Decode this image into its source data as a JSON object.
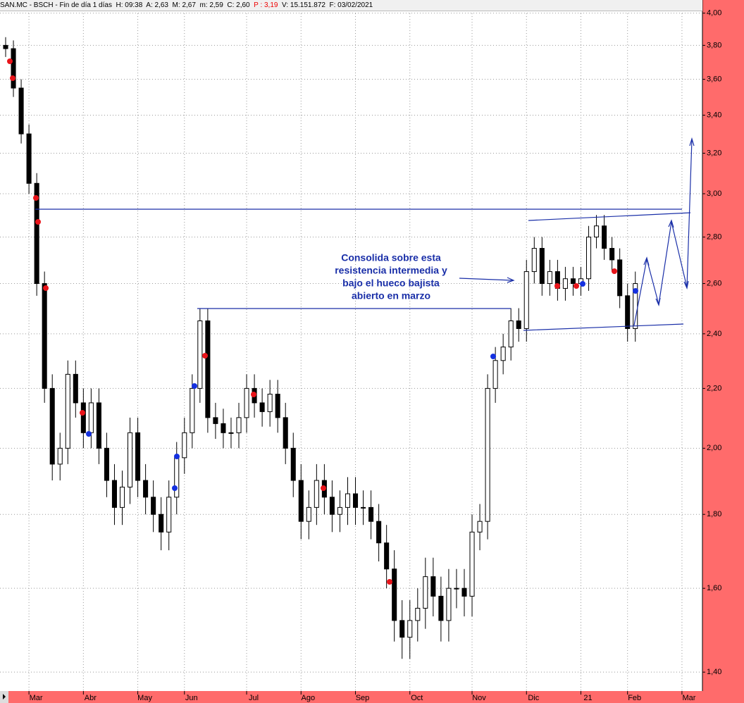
{
  "chart_data": {
    "type": "candlestick",
    "header": {
      "info": "SAN.MC - BSCH - Fin de día 1 días  H: 09:38  A: 2,63  M: 2,67  m: 2,59  C: 2,60",
      "price": "P : 3,19",
      "extra": "V: 15.151.872  F: 03/02/2021"
    },
    "annotation": [
      "Consolida sobre esta",
      "resistencia intermedia y",
      "bajo el hueco bajista",
      "abierto en marzo"
    ],
    "categories": [
      null,
      null,
      null,
      "Mar",
      null,
      null,
      null,
      null,
      null,
      null,
      "Abr",
      null,
      null,
      null,
      null,
      null,
      null,
      "May",
      null,
      null,
      null,
      null,
      null,
      "Jun",
      null,
      null,
      null,
      null,
      null,
      null,
      null,
      "Jul",
      null,
      null,
      null,
      null,
      null,
      null,
      "Ago",
      null,
      null,
      null,
      null,
      null,
      null,
      "Sep",
      null,
      null,
      null,
      null,
      null,
      null,
      "Oct",
      null,
      null,
      null,
      null,
      null,
      null,
      null,
      "Nov",
      null,
      null,
      null,
      null,
      null,
      null,
      "Dic",
      null,
      null,
      null,
      null,
      null,
      null,
      "21",
      null,
      null,
      null,
      null,
      null,
      "Feb",
      null,
      null,
      null,
      null,
      null,
      null,
      "Mar",
      null,
      null
    ],
    "open": [
      3.8,
      3.78,
      3.55,
      3.3,
      3.05,
      2.6,
      2.2,
      1.95,
      2.0,
      2.25,
      2.15,
      2.05,
      2.15,
      2.0,
      1.9,
      1.82,
      1.88,
      2.05,
      1.9,
      1.85,
      1.8,
      1.75,
      1.85,
      1.97,
      2.05,
      2.2,
      2.45,
      2.1,
      2.08,
      2.05,
      2.05,
      2.1,
      2.2,
      2.15,
      2.12,
      2.18,
      2.1,
      2.0,
      1.9,
      1.78,
      1.82,
      1.9,
      1.85,
      1.8,
      1.82,
      1.86,
      1.82,
      1.82,
      1.78,
      1.72,
      1.65,
      1.52,
      1.48,
      1.52,
      1.55,
      1.63,
      1.58,
      1.52,
      1.6,
      1.6,
      1.58,
      1.75,
      1.78,
      2.2,
      2.3,
      2.35,
      2.45,
      2.42,
      2.65,
      2.75,
      2.6,
      2.65,
      2.58,
      2.62,
      2.6,
      2.62,
      2.8,
      2.85,
      2.75,
      2.7,
      2.55,
      2.42,
      null,
      null,
      null,
      null,
      null,
      null,
      null,
      null
    ],
    "high": [
      3.85,
      3.83,
      3.6,
      3.35,
      3.1,
      2.65,
      2.25,
      2.05,
      2.3,
      2.3,
      2.2,
      2.2,
      2.2,
      2.05,
      1.95,
      1.93,
      2.1,
      2.1,
      1.95,
      1.9,
      1.85,
      1.9,
      2.02,
      2.1,
      2.25,
      2.5,
      2.5,
      2.15,
      2.13,
      2.1,
      2.15,
      2.25,
      2.25,
      2.2,
      2.23,
      2.23,
      2.15,
      2.05,
      1.95,
      1.87,
      1.95,
      1.95,
      1.9,
      1.87,
      1.91,
      1.91,
      1.87,
      1.87,
      1.83,
      1.77,
      1.7,
      1.57,
      1.57,
      1.6,
      1.68,
      1.68,
      1.63,
      1.65,
      1.65,
      1.65,
      1.8,
      1.83,
      2.25,
      2.35,
      2.4,
      2.5,
      2.5,
      2.7,
      2.8,
      2.8,
      2.7,
      2.7,
      2.67,
      2.67,
      2.67,
      2.85,
      2.9,
      2.9,
      2.8,
      2.75,
      2.6,
      2.65,
      null,
      null,
      null,
      null,
      null,
      null,
      null,
      null
    ],
    "low": [
      3.73,
      3.5,
      3.25,
      3.0,
      2.55,
      2.15,
      1.9,
      1.9,
      1.95,
      2.1,
      2.0,
      2.0,
      1.95,
      1.85,
      1.77,
      1.77,
      1.83,
      1.85,
      1.8,
      1.75,
      1.7,
      1.7,
      1.8,
      1.92,
      2.0,
      2.15,
      2.05,
      2.03,
      2.0,
      2.0,
      2.0,
      2.05,
      2.1,
      2.07,
      2.07,
      2.05,
      1.95,
      1.85,
      1.73,
      1.73,
      1.77,
      1.8,
      1.75,
      1.75,
      1.77,
      1.77,
      1.77,
      1.73,
      1.67,
      1.6,
      1.47,
      1.43,
      1.43,
      1.47,
      1.5,
      1.53,
      1.47,
      1.47,
      1.55,
      1.53,
      1.53,
      1.7,
      1.73,
      2.15,
      2.25,
      2.3,
      2.37,
      2.37,
      2.6,
      2.55,
      2.55,
      2.53,
      2.53,
      2.55,
      2.55,
      2.57,
      2.75,
      2.7,
      2.65,
      2.5,
      2.37,
      2.37,
      null,
      null,
      null,
      null,
      null,
      null,
      null,
      null
    ],
    "close": [
      3.78,
      3.55,
      3.3,
      3.05,
      2.6,
      2.2,
      1.95,
      2.0,
      2.25,
      2.15,
      2.05,
      2.15,
      2.0,
      1.9,
      1.82,
      1.88,
      2.05,
      1.9,
      1.85,
      1.8,
      1.75,
      1.85,
      1.97,
      2.05,
      2.2,
      2.45,
      2.1,
      2.08,
      2.05,
      2.05,
      2.1,
      2.2,
      2.15,
      2.12,
      2.18,
      2.1,
      2.0,
      1.9,
      1.78,
      1.82,
      1.9,
      1.85,
      1.8,
      1.82,
      1.86,
      1.82,
      1.82,
      1.78,
      1.72,
      1.65,
      1.52,
      1.48,
      1.52,
      1.55,
      1.63,
      1.58,
      1.52,
      1.6,
      1.6,
      1.58,
      1.75,
      1.78,
      2.2,
      2.3,
      2.35,
      2.45,
      2.42,
      2.65,
      2.75,
      2.6,
      2.65,
      2.58,
      2.62,
      2.6,
      2.62,
      2.8,
      2.85,
      2.75,
      2.7,
      2.55,
      2.42,
      2.6,
      null,
      null,
      null,
      null,
      null,
      null,
      null,
      null
    ],
    "up_color": "#ffffff",
    "down_color": "#000000",
    "ylim": [
      1.36,
      4.03
    ],
    "log_scale": true,
    "grid": true,
    "yticks": [
      {
        "value": 1.4,
        "label": "1,40"
      },
      {
        "value": 1.6,
        "label": "1,60"
      },
      {
        "value": 1.8,
        "label": "1,80"
      },
      {
        "value": 2.0,
        "label": "2,00"
      },
      {
        "value": 2.2,
        "label": "2,20"
      },
      {
        "value": 2.4,
        "label": "2,40"
      },
      {
        "value": 2.6,
        "label": "2,60"
      },
      {
        "value": 2.8,
        "label": "2,80"
      },
      {
        "value": 3.0,
        "label": "3,00"
      },
      {
        "value": 3.2,
        "label": "3,20"
      },
      {
        "value": 3.4,
        "label": "3,40"
      },
      {
        "value": 3.6,
        "label": "3,60"
      },
      {
        "value": 3.8,
        "label": "3,80"
      },
      {
        "value": 4.0,
        "label": "4,00"
      }
    ]
  }
}
